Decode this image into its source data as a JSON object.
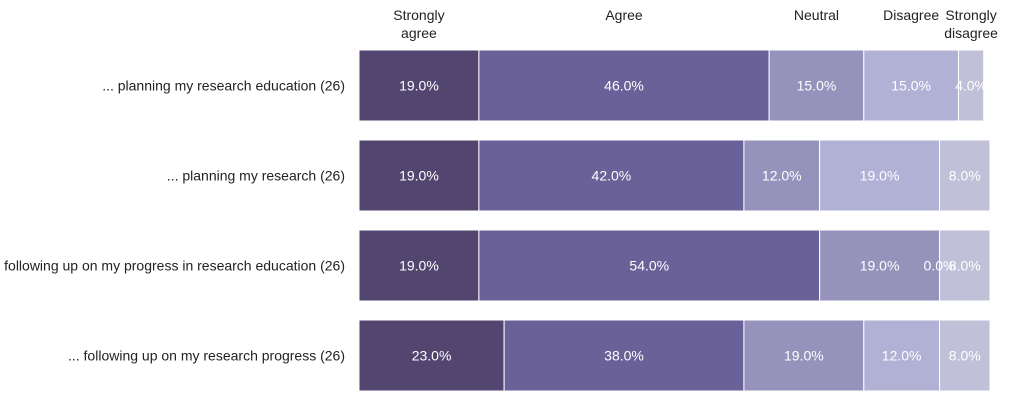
{
  "chart_data": {
    "type": "bar",
    "orientation": "horizontal",
    "stacked": true,
    "normalized": true,
    "categories": [
      "... planning my research education (26)",
      "... planning my research (26)",
      "following up on my progress in research education (26)",
      "... following up on my research progress (26)"
    ],
    "series": [
      {
        "name": "Strongly agree",
        "color": "#524670",
        "values": [
          19,
          19,
          19,
          23
        ],
        "labels": [
          "19.0%",
          "19.0%",
          "19.0%",
          "23.0%"
        ]
      },
      {
        "name": "Agree",
        "color": "#6b6199",
        "values": [
          46,
          42,
          54,
          38
        ],
        "labels": [
          "46.0%",
          "42.0%",
          "54.0%",
          "38.0%"
        ]
      },
      {
        "name": "Neutral",
        "color": "#9593bb",
        "values": [
          15,
          12,
          19,
          19
        ],
        "labels": [
          "15.0%",
          "12.0%",
          "19.0%",
          "19.0%"
        ]
      },
      {
        "name": "Disagree",
        "color": "#b1b0d5",
        "values": [
          15,
          19,
          0,
          12
        ],
        "labels": [
          "15.0%",
          "19.0%",
          "0.0%",
          "12.0%"
        ]
      },
      {
        "name": "Strongly disagree",
        "color": "#c0c0d9",
        "values": [
          4,
          8,
          8,
          8
        ],
        "labels": [
          "4.0%",
          "8.0%",
          "8.0%",
          "8.0%"
        ]
      }
    ],
    "legend_position": "top",
    "xlim": [
      0,
      100
    ],
    "grid": false,
    "title": "",
    "xlabel": "",
    "ylabel": ""
  }
}
